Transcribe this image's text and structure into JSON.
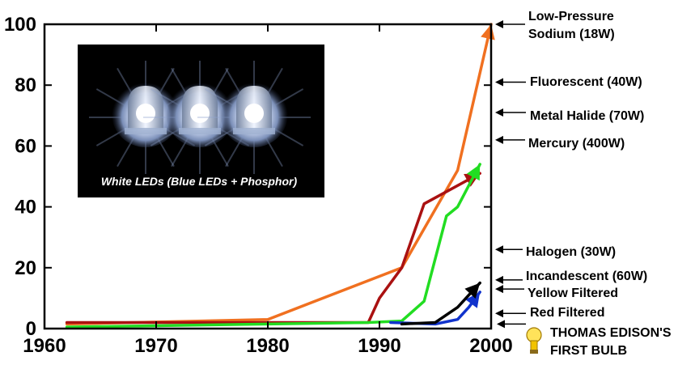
{
  "chart_data": {
    "type": "line",
    "title": "",
    "xlabel": "",
    "ylabel": "",
    "xlim": [
      1960,
      2000
    ],
    "ylim": [
      0,
      100
    ],
    "x_ticks": [
      1960,
      1970,
      1980,
      1990,
      2000
    ],
    "y_ticks": [
      0,
      20,
      40,
      60,
      80,
      100
    ],
    "grid": false,
    "series": [
      {
        "color": "#f07020",
        "points": [
          [
            1962,
            1.5
          ],
          [
            1980,
            3
          ],
          [
            1992,
            20
          ],
          [
            1997,
            52
          ],
          [
            2000,
            100
          ]
        ]
      },
      {
        "color": "#aa1111",
        "points": [
          [
            1962,
            2
          ],
          [
            1989,
            2
          ],
          [
            1990,
            10
          ],
          [
            1992,
            20
          ],
          [
            1994,
            41
          ],
          [
            1996,
            45
          ],
          [
            1999,
            51
          ]
        ]
      },
      {
        "color": "#22dd22",
        "points": [
          [
            1962,
            0.5
          ],
          [
            1989,
            2
          ],
          [
            1992,
            2.5
          ],
          [
            1994,
            9
          ],
          [
            1996,
            37
          ],
          [
            1997,
            40
          ],
          [
            1999,
            54
          ]
        ]
      },
      {
        "color": "#1133cc",
        "points": [
          [
            1991,
            2
          ],
          [
            1995,
            1.5
          ],
          [
            1997,
            3
          ],
          [
            1998,
            7
          ],
          [
            1999,
            12
          ]
        ]
      },
      {
        "color": "#000000",
        "points": [
          [
            1992,
            1.5
          ],
          [
            1995,
            2
          ],
          [
            1997,
            7
          ],
          [
            1999,
            15
          ]
        ]
      }
    ],
    "reference_levels": [
      {
        "label": "Low-Pressure Sodium (18W)",
        "lines": [
          "Low-Pressure",
          "Sodium (18W)"
        ],
        "value": 100,
        "color": "#000000"
      },
      {
        "label": "Fluorescent (40W)",
        "lines": [
          "Fluorescent (40W)"
        ],
        "value": 81,
        "color": "#000000"
      },
      {
        "label": "Metal Halide (70W)",
        "lines": [
          "Metal Halide (70W)"
        ],
        "value": 71,
        "color": "#000000"
      },
      {
        "label": "Mercury (400W)",
        "lines": [
          "Mercury (400W)"
        ],
        "value": 62,
        "color": "#000000"
      },
      {
        "label": "Halogen (30W)",
        "lines": [
          "Halogen (30W)"
        ],
        "value": 26,
        "color": "#000000"
      },
      {
        "label": "Incandescent (60W)",
        "lines": [
          "Incandescent (60W)"
        ],
        "value": 16,
        "color": "#000000"
      },
      {
        "label": "Yellow Filtered",
        "lines": [
          "Yellow Filtered"
        ],
        "value": 13,
        "color": "#ffee00"
      },
      {
        "label": "Red Filtered",
        "lines": [
          "Red Filtered"
        ],
        "value": 5,
        "color": "#dd0000"
      },
      {
        "label": "THOMAS EDISON'S FIRST BULB",
        "lines": [
          "THOMAS EDISON'S",
          "FIRST BULB"
        ],
        "value": 1.5,
        "color": "#000000"
      }
    ],
    "photo_caption": "White LEDs (Blue LEDs + Phosphor)"
  }
}
